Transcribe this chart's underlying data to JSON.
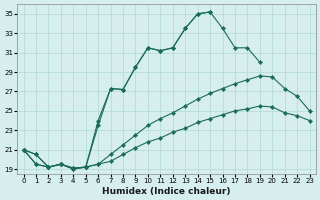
{
  "xlabel": "Humidex (Indice chaleur)",
  "ylabel": "",
  "xlim": [
    -0.5,
    23.5
  ],
  "ylim": [
    18.5,
    36
  ],
  "xticks": [
    0,
    1,
    2,
    3,
    4,
    5,
    6,
    7,
    8,
    9,
    10,
    11,
    12,
    13,
    14,
    15,
    16,
    17,
    18,
    19,
    20,
    21,
    22,
    23
  ],
  "yticks": [
    19,
    21,
    23,
    25,
    27,
    29,
    31,
    33,
    35
  ],
  "bg_color": "#d6eeee",
  "grid_color": "#b0d8d8",
  "line_color": "#1a6b5a",
  "line1_x": [
    0,
    1,
    2,
    3,
    4,
    5,
    6,
    7,
    8,
    9,
    10,
    11,
    12,
    13,
    14,
    15,
    16,
    17,
    18,
    19
  ],
  "line1_y": [
    21.0,
    20.5,
    19.2,
    19.5,
    19.0,
    19.2,
    23.5,
    27.3,
    27.2,
    29.5,
    31.5,
    31.2,
    31.5,
    33.5,
    35.0,
    35.2,
    33.5,
    31.5,
    31.5,
    30.0
  ],
  "line2_x": [
    0,
    1,
    2,
    3,
    4,
    5,
    6,
    7,
    8,
    9,
    10,
    11,
    12,
    13,
    14,
    15
  ],
  "line2_y": [
    21.0,
    20.5,
    19.2,
    19.5,
    19.0,
    19.2,
    24.0,
    27.3,
    27.2,
    29.5,
    31.5,
    31.2,
    31.5,
    33.5,
    35.0,
    35.2
  ],
  "line3_x": [
    0,
    1,
    2,
    3,
    4,
    5,
    6,
    7,
    8,
    9,
    10,
    11,
    12,
    13,
    14,
    15,
    16,
    17,
    18,
    19,
    20,
    21,
    22,
    23
  ],
  "line3_y": [
    21.0,
    19.5,
    19.2,
    19.5,
    19.1,
    19.2,
    19.5,
    20.5,
    21.5,
    22.5,
    23.5,
    24.2,
    24.8,
    25.5,
    26.2,
    26.8,
    27.3,
    27.8,
    28.2,
    28.6,
    28.5,
    27.3,
    26.5,
    25.0
  ],
  "line4_x": [
    0,
    1,
    2,
    3,
    4,
    5,
    6,
    7,
    8,
    9,
    10,
    11,
    12,
    13,
    14,
    15,
    16,
    17,
    18,
    19,
    20,
    21,
    22,
    23
  ],
  "line4_y": [
    21.0,
    19.5,
    19.2,
    19.5,
    19.1,
    19.2,
    19.5,
    19.8,
    20.5,
    21.2,
    21.8,
    22.2,
    22.8,
    23.2,
    23.8,
    24.2,
    24.6,
    25.0,
    25.2,
    25.5,
    25.4,
    24.8,
    24.5,
    24.0
  ]
}
